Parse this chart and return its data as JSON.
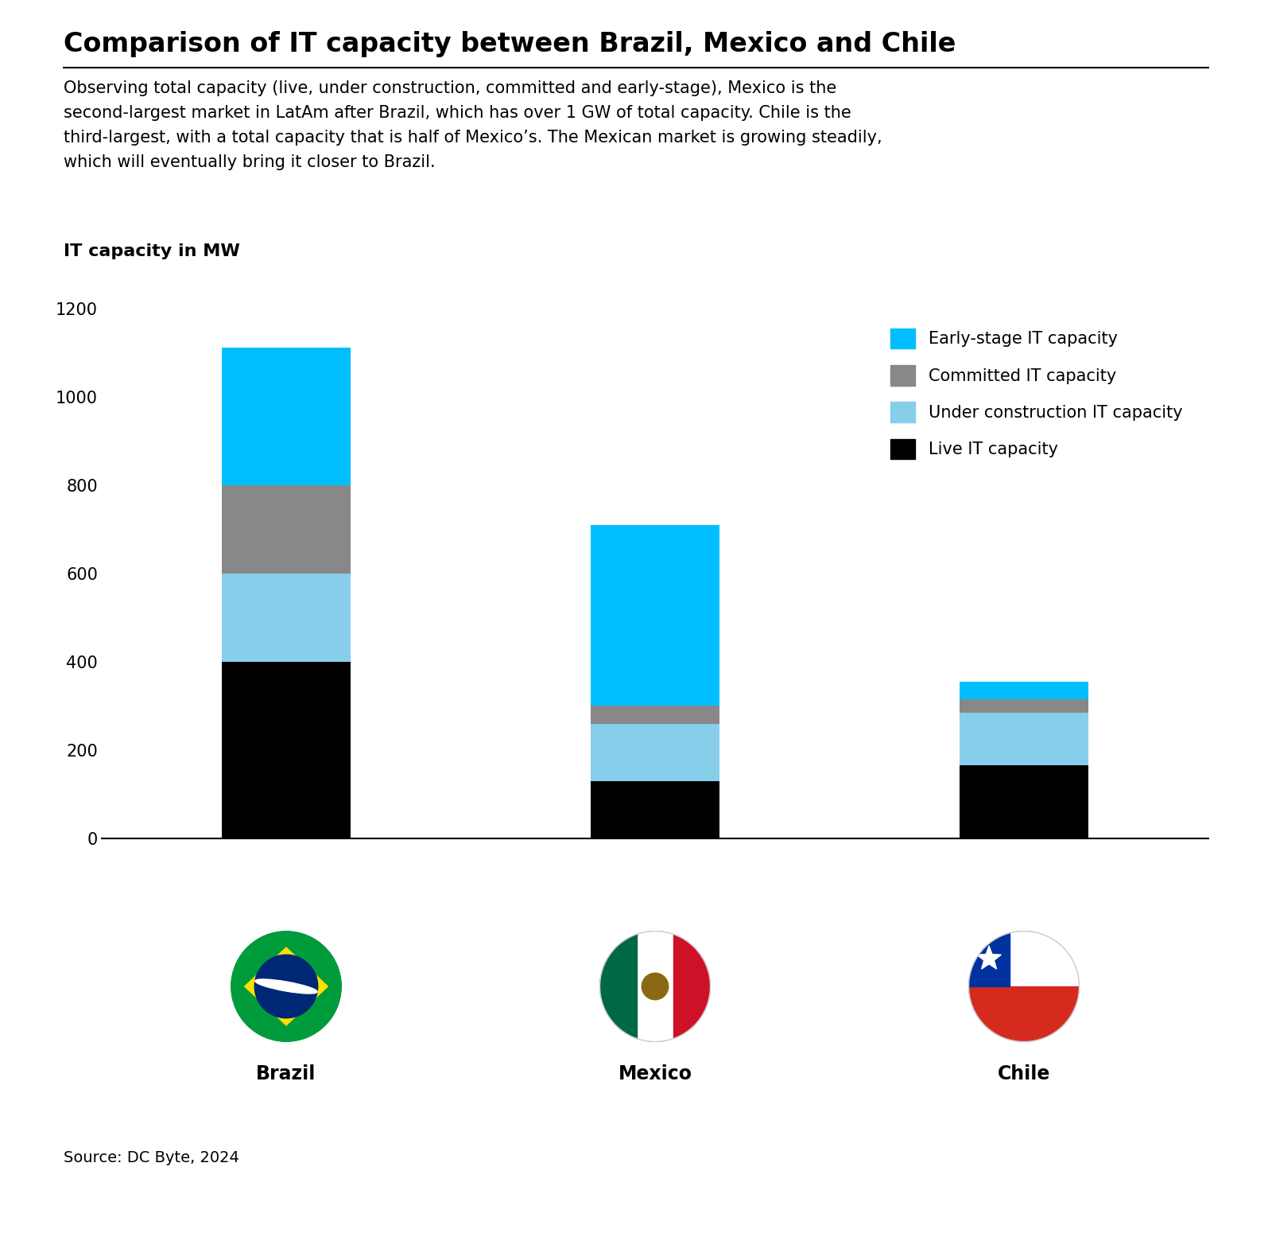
{
  "title": "Comparison of IT capacity between Brazil, Mexico and Chile",
  "subtitle": "Observing total capacity (live, under construction, committed and early-stage), Mexico is the\nsecond-largest market in LatAm after Brazil, which has over 1 GW of total capacity. Chile is the\nthird-largest, with a total capacity that is half of Mexico’s. The Mexican market is growing steadily,\nwhich will eventually bring it closer to Brazil.",
  "chart_label": "IT capacity in MW",
  "source": "Source: DC Byte, 2024",
  "countries": [
    "Brazil",
    "Mexico",
    "Chile"
  ],
  "live": [
    400,
    130,
    165
  ],
  "under_construction": [
    200,
    130,
    120
  ],
  "committed": [
    200,
    40,
    30
  ],
  "early_stage": [
    310,
    410,
    40
  ],
  "colors": {
    "live": "#000000",
    "under_construction": "#87CEEB",
    "committed": "#888888",
    "early_stage": "#00BFFF"
  },
  "ylim": [
    0,
    1200
  ],
  "yticks": [
    0,
    200,
    400,
    600,
    800,
    1000,
    1200
  ],
  "bar_width": 0.35,
  "title_fontsize": 24,
  "subtitle_fontsize": 15,
  "chart_label_fontsize": 16,
  "source_fontsize": 14,
  "tick_fontsize": 15,
  "legend_fontsize": 15,
  "country_label_fontsize": 17
}
